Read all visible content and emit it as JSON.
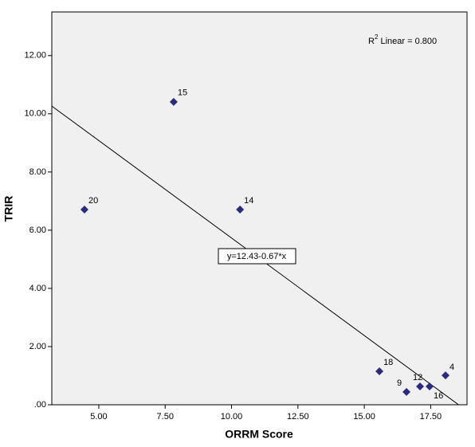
{
  "chart_data": {
    "type": "scatter",
    "x_label": "ORRM Score",
    "y_label": "TRIR",
    "series": [
      {
        "color": "#2b2b7e",
        "x": [
          4.46,
          7.82,
          10.32,
          15.57,
          16.59,
          17.1,
          17.46,
          18.06
        ],
        "values": [
          6.71,
          10.41,
          6.71,
          1.15,
          0.44,
          0.63,
          0.63,
          1.01
        ],
        "labels": [
          "20",
          "15",
          "14",
          "18",
          "9",
          "12",
          "16",
          "4"
        ]
      }
    ],
    "fit": {
      "intercept": 12.43,
      "slope": -0.67,
      "label": "y=12.43-0.67*x"
    },
    "r2": {
      "symbol": "R",
      "sup": "2",
      "text": " Linear = 0.800"
    },
    "xlim": [
      3.23,
      18.87
    ],
    "xticks": [
      {
        "value": 5,
        "label": "5.00"
      },
      {
        "value": 7.5,
        "label": "7.50"
      },
      {
        "value": 10,
        "label": "10.00"
      },
      {
        "value": 12.5,
        "label": "12.50"
      },
      {
        "value": 15,
        "label": "15.00"
      },
      {
        "value": 17.5,
        "label": "17.50"
      }
    ],
    "ylim": [
      0,
      13.5
    ],
    "yticks": [
      {
        "value": 0,
        "label": ".00"
      },
      {
        "value": 2,
        "label": "2.00"
      },
      {
        "value": 4,
        "label": "4.00"
      },
      {
        "value": 6,
        "label": "6.00"
      },
      {
        "value": 8,
        "label": "8.00"
      },
      {
        "value": 10,
        "label": "10.00"
      },
      {
        "value": 12,
        "label": "12.00"
      }
    ]
  }
}
